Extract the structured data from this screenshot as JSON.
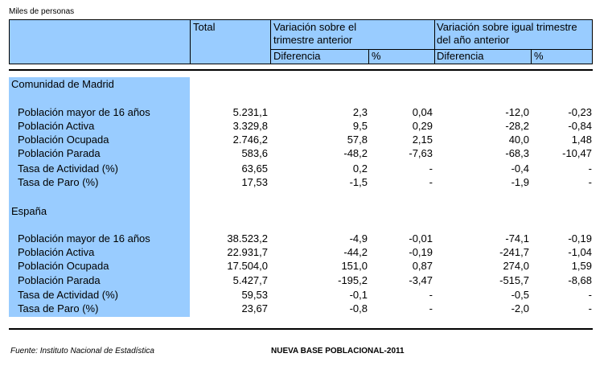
{
  "units_label": "Miles de personas",
  "header": {
    "total": "Total",
    "var_prev_line1": "Variación sobre el",
    "var_prev_line2": "trimestre anterior",
    "var_year_line1": "Variación sobre igual trimestre",
    "var_year_line2": "del año anterior",
    "diferencia": "Diferencia",
    "pct": "%"
  },
  "sections": [
    {
      "title": "Comunidad de Madrid",
      "rows": [
        {
          "label": "Población mayor de 16 años",
          "total": "5.231,1",
          "dif_prev": "2,3",
          "pct_prev": "0,04",
          "dif_year": "-12,0",
          "pct_year": "-0,23"
        },
        {
          "label": "Población Activa",
          "total": "3.329,8",
          "dif_prev": "9,5",
          "pct_prev": "0,29",
          "dif_year": "-28,2",
          "pct_year": "-0,84"
        },
        {
          "label": "Población Ocupada",
          "total": "2.746,2",
          "dif_prev": "57,8",
          "pct_prev": "2,15",
          "dif_year": "40,0",
          "pct_year": "1,48"
        },
        {
          "label": "Población Parada",
          "total": "583,6",
          "dif_prev": "-48,2",
          "pct_prev": "-7,63",
          "dif_year": "-68,3",
          "pct_year": "-10,47"
        },
        {
          "label": "Tasa de Actividad (%)",
          "total": "63,65",
          "dif_prev": "0,2",
          "pct_prev": "-",
          "dif_year": "-0,4",
          "pct_year": "-"
        },
        {
          "label": "Tasa de Paro (%)",
          "total": "17,53",
          "dif_prev": "-1,5",
          "pct_prev": "-",
          "dif_year": "-1,9",
          "pct_year": "-"
        }
      ]
    },
    {
      "title": "España",
      "rows": [
        {
          "label": "Población mayor de 16 años",
          "total": "38.523,2",
          "dif_prev": "-4,9",
          "pct_prev": "-0,01",
          "dif_year": "-74,1",
          "pct_year": "-0,19"
        },
        {
          "label": "Población Activa",
          "total": "22.931,7",
          "dif_prev": "-44,2",
          "pct_prev": "-0,19",
          "dif_year": "-241,7",
          "pct_year": "-1,04"
        },
        {
          "label": "Población Ocupada",
          "total": "17.504,0",
          "dif_prev": "151,0",
          "pct_prev": "0,87",
          "dif_year": "274,0",
          "pct_year": "1,59"
        },
        {
          "label": "Población Parada",
          "total": "5.427,7",
          "dif_prev": "-195,2",
          "pct_prev": "-3,47",
          "dif_year": "-515,7",
          "pct_year": "-8,68"
        },
        {
          "label": "Tasa de Actividad (%)",
          "total": "59,53",
          "dif_prev": "-0,1",
          "pct_prev": "-",
          "dif_year": "-0,5",
          "pct_year": "-"
        },
        {
          "label": "Tasa de Paro (%)",
          "total": "23,67",
          "dif_prev": "-0,8",
          "pct_prev": "-",
          "dif_year": "-2,0",
          "pct_year": "-"
        }
      ]
    }
  ],
  "footer": {
    "source": "Fuente: Instituto Nacional de Estadística",
    "base": "NUEVA BASE POBLACIONAL-2011"
  },
  "colors": {
    "header_fill": "#99ccff",
    "label_fill": "#99ccff"
  }
}
